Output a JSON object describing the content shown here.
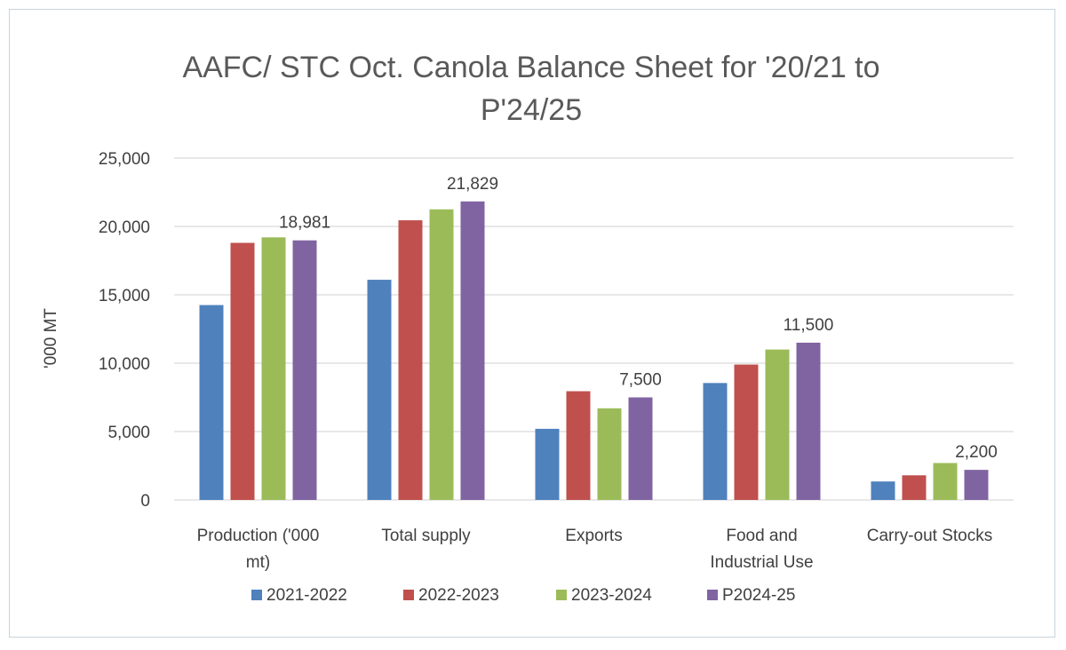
{
  "chart_data": {
    "type": "bar",
    "title_lines": [
      "AAFC/ STC Oct. Canola Balance Sheet for '20/21 to",
      "P'24/25"
    ],
    "ylabel": "'000 MT",
    "xlabel": "",
    "ylim": [
      0,
      25000
    ],
    "yticks": [
      0,
      5000,
      10000,
      15000,
      20000,
      25000
    ],
    "ytick_labels": [
      "0",
      "5,000",
      "10,000",
      "15,000",
      "20,000",
      "25,000"
    ],
    "categories": [
      [
        "Production ('000",
        "mt)"
      ],
      [
        "Total supply"
      ],
      [
        "Exports"
      ],
      [
        "Food and",
        "Industrial Use"
      ],
      [
        "Carry-out Stocks"
      ]
    ],
    "series": [
      {
        "name": "2021-2022",
        "color": "#4f81bd",
        "values": [
          14250,
          16100,
          5200,
          8550,
          1350
        ]
      },
      {
        "name": "2022-2023",
        "color": "#c0504d",
        "values": [
          18800,
          20450,
          7950,
          9900,
          1800
        ]
      },
      {
        "name": "2023-2024",
        "color": "#9bbb59",
        "values": [
          19200,
          21250,
          6700,
          11000,
          2700
        ]
      },
      {
        "name": "P2024-25",
        "color": "#8064a2",
        "values": [
          18981,
          21829,
          7500,
          11500,
          2200
        ]
      }
    ],
    "data_labels": [
      {
        "series": 3,
        "category": 0,
        "text": "18,981"
      },
      {
        "series": 3,
        "category": 1,
        "text": "21,829"
      },
      {
        "series": 3,
        "category": 2,
        "text": "7,500"
      },
      {
        "series": 3,
        "category": 3,
        "text": "11,500"
      },
      {
        "series": 3,
        "category": 4,
        "text": "2,200"
      }
    ],
    "grid": true,
    "legend_position": "bottom"
  },
  "colors": {
    "gridline": "#d9d9d9",
    "text": "#404040",
    "title": "#595959"
  }
}
